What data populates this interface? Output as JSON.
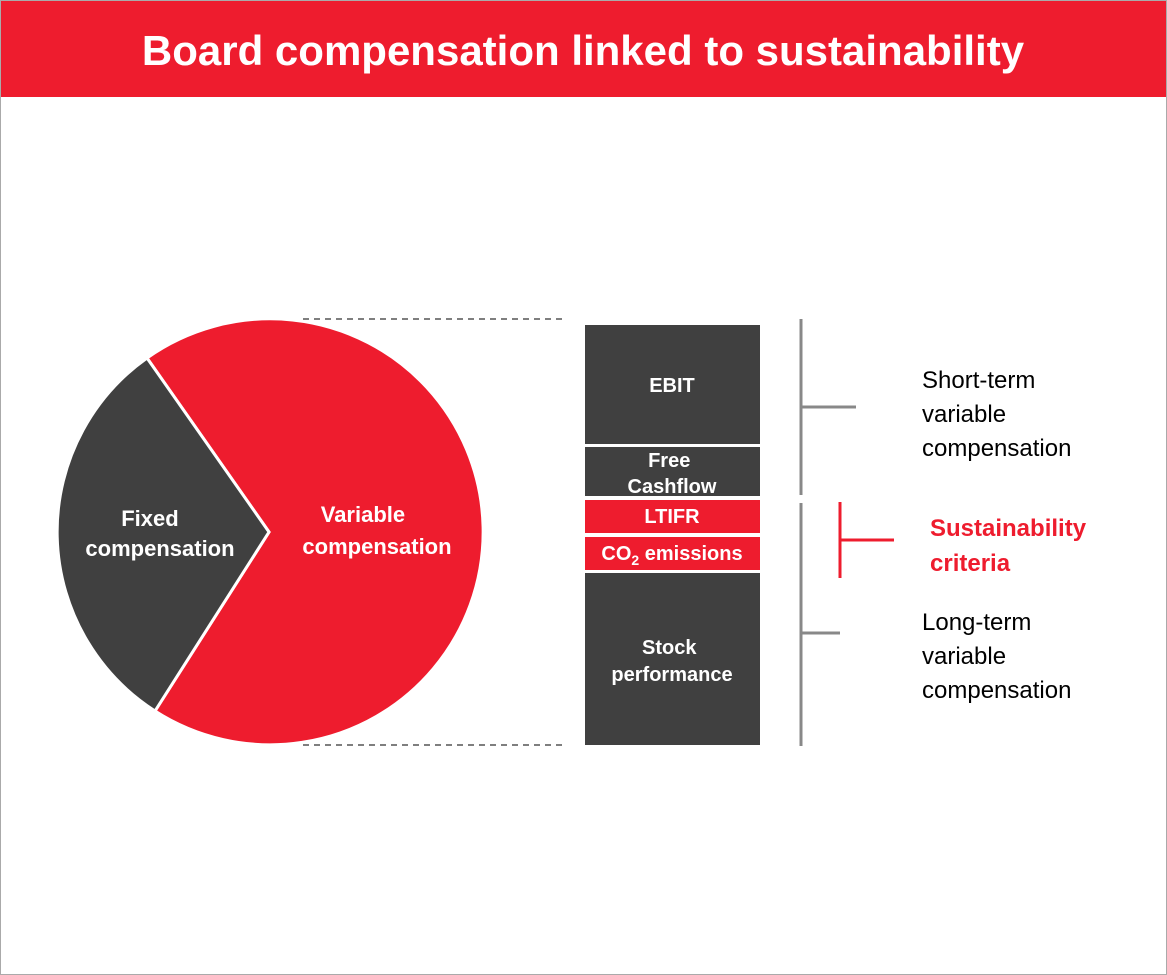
{
  "header": {
    "title": "Board compensation linked to sustainability"
  },
  "pie": {
    "fixed": [
      "Fixed",
      "compensation"
    ],
    "variable": [
      "Variable",
      "compensation"
    ]
  },
  "stack": {
    "ebit": "EBIT",
    "free_cashflow": [
      "Free",
      "Cashflow"
    ],
    "ltifr": "LTIFR",
    "co2": {
      "main": "CO",
      "sub": "2",
      "rest": " emissions"
    },
    "stock": [
      "Stock",
      "performance"
    ]
  },
  "groups": {
    "short_term": [
      "Short-term",
      "variable",
      "compensation"
    ],
    "sustainability": [
      "Sustainability",
      "criteria"
    ],
    "long_term": [
      "Long-term",
      "variable",
      "compensation"
    ]
  }
}
